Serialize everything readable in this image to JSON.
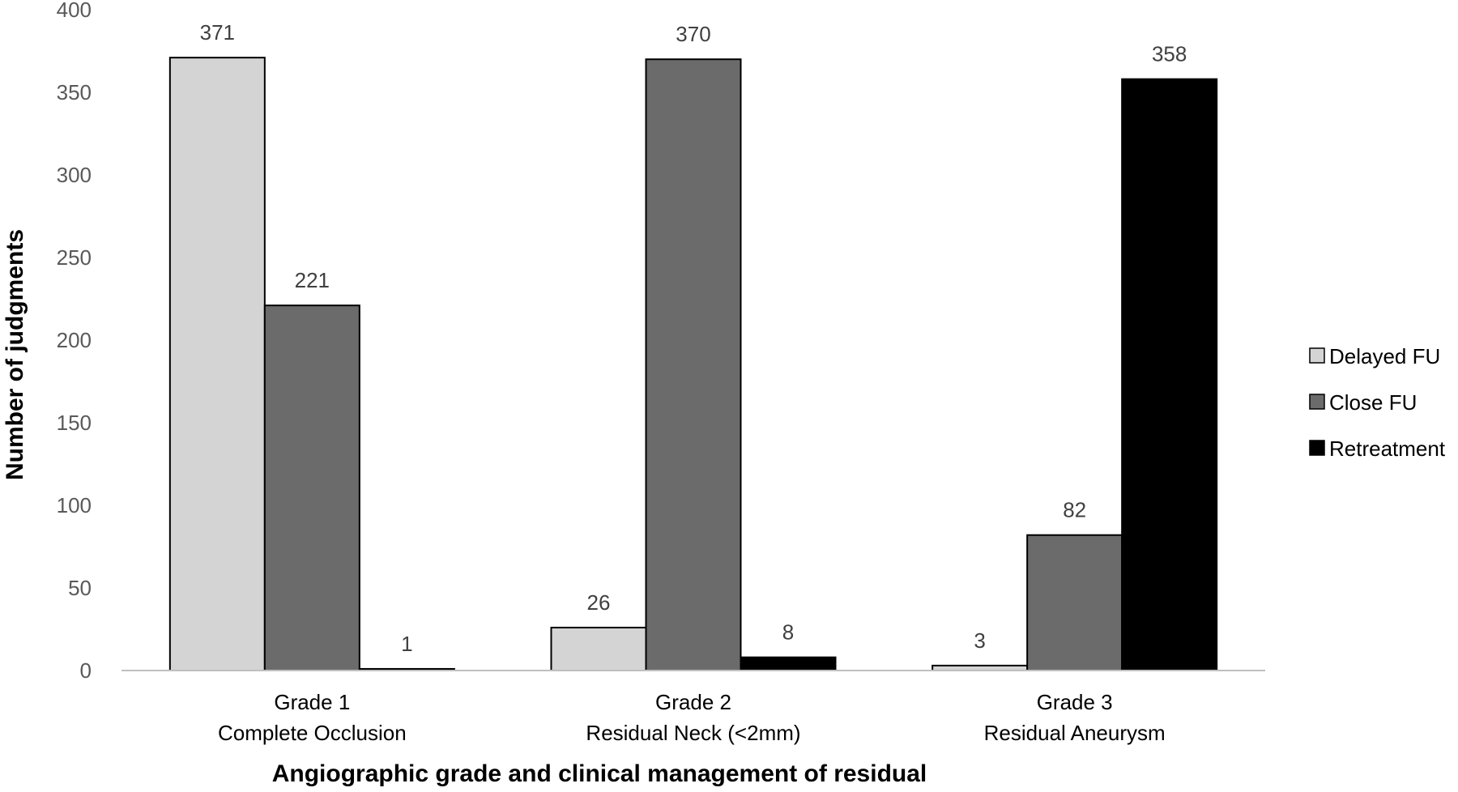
{
  "chart_data": {
    "type": "bar",
    "categories": [
      [
        "Grade 1",
        "Complete Occlusion"
      ],
      [
        "Grade 2",
        "Residual Neck (<2mm)"
      ],
      [
        "Grade 3",
        "Residual Aneurysm"
      ]
    ],
    "series": [
      {
        "name": "Delayed FU",
        "values": [
          371,
          26,
          3
        ],
        "color": "#d4d4d4"
      },
      {
        "name": "Close FU",
        "values": [
          221,
          370,
          82
        ],
        "color": "#6b6b6b"
      },
      {
        "name": "Retreatment",
        "values": [
          1,
          8,
          358
        ],
        "color": "#000000"
      }
    ],
    "xlabel": "Angiographic grade and clinical management of residual",
    "ylabel": "Number of judgments",
    "ylim": [
      0,
      400
    ],
    "yticks": [
      0,
      50,
      100,
      150,
      200,
      250,
      300,
      350,
      400
    ],
    "grid": false,
    "legend_position": "right",
    "data_labels": true
  }
}
